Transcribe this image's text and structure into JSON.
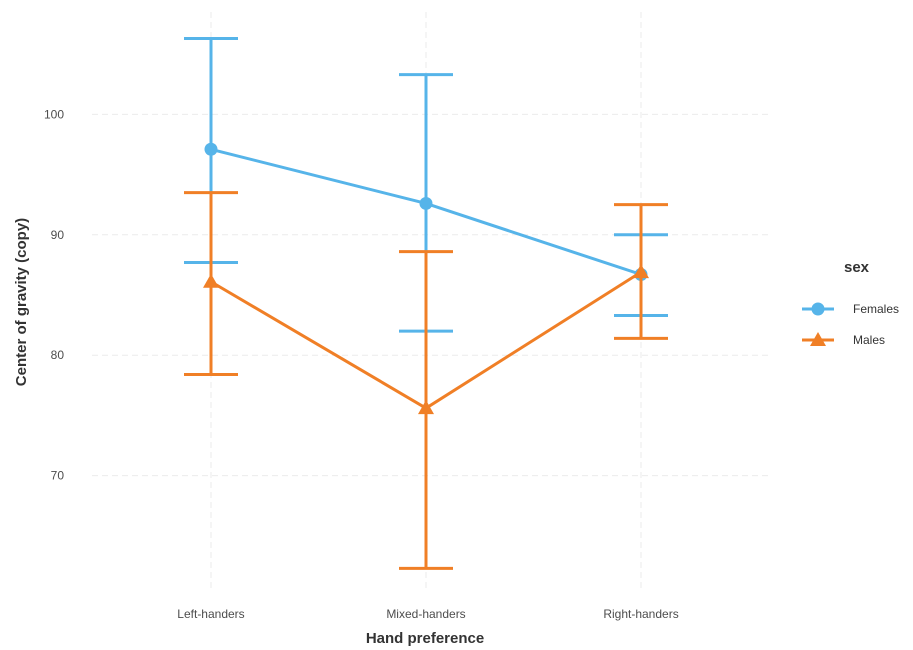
{
  "chart_data": {
    "type": "line",
    "xlabel": "Hand preference",
    "ylabel": "Center of gravity (copy)",
    "categories": [
      "Left-handers",
      "Mixed-handers",
      "Right-handers"
    ],
    "ylim": [
      60.5,
      108.5
    ],
    "yticks": [
      70,
      80,
      90,
      100
    ],
    "grid": true,
    "grid_style": "dashed",
    "legend": {
      "title": "sex",
      "position": "right"
    },
    "series": [
      {
        "name": "Females",
        "color": "#56B4E9",
        "marker": "circle",
        "values": [
          97.1,
          92.6,
          86.7
        ],
        "error_low": [
          87.7,
          82.0,
          83.3
        ],
        "error_high": [
          106.3,
          103.3,
          90.0
        ]
      },
      {
        "name": "Males",
        "color": "#F07F26",
        "marker": "triangle",
        "values": [
          86.1,
          75.6,
          86.9
        ],
        "error_low": [
          78.4,
          62.3,
          81.4
        ],
        "error_high": [
          93.5,
          88.6,
          92.5
        ]
      }
    ]
  }
}
